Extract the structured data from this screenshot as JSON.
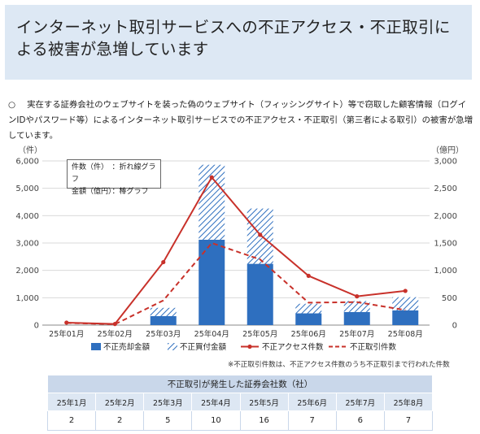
{
  "header": {
    "title": "インターネット取引サービスへの不正アクセス・不正取引による被害が急増しています"
  },
  "description": {
    "bullet": "○",
    "text": "実在する証券会社のウェブサイトを装った偽のウェブサイト（フィッシングサイト）等で窃取した顧客情報（ログインIDやパスワード等）によるインターネット取引サービスでの不正アクセス・不正取引（第三者による取引）の被害が急増しています。"
  },
  "chart_legend_box": {
    "line1": "件数（件）　：折れ線グラフ",
    "line2": "金額（億円）：棒グラフ"
  },
  "footnote": "※不正取引件数は、不正アクセス件数のうち不正取引まで行われた件数",
  "chart_data": {
    "type": "bar",
    "categories": [
      "25年01月",
      "25年02月",
      "25年03月",
      "25年04月",
      "25年05月",
      "25年06月",
      "25年07月",
      "25年08月"
    ],
    "left_axis": {
      "unit_label": "（件）",
      "ticks": [
        "0",
        "1,000",
        "2,000",
        "3,000",
        "4,000",
        "5,000",
        "6,000"
      ],
      "ylim": [
        0,
        6000
      ]
    },
    "right_axis": {
      "unit_label": "（億円）",
      "ticks": [
        "0",
        "500",
        "1,000",
        "1,500",
        "2,000",
        "2,500",
        "3,000"
      ],
      "ylim": [
        0,
        3000
      ]
    },
    "bar_series": [
      {
        "name": "不正売却金額",
        "axis": "right",
        "color": "#2e6fbf",
        "values": [
          0,
          0,
          165,
          1560,
          1120,
          215,
          240,
          270
        ]
      },
      {
        "name": "不正買付金額",
        "axis": "right",
        "color": "#2e6fbf",
        "pattern": "hatch",
        "values": [
          0,
          0,
          150,
          1370,
          1010,
          175,
          200,
          240
        ]
      }
    ],
    "line_series": [
      {
        "name": "不正アクセス件数",
        "axis": "left",
        "color": "#c8312a",
        "dashed": false,
        "values": [
          90,
          40,
          2300,
          5400,
          3300,
          1800,
          1050,
          1250
        ]
      },
      {
        "name": "不正取引件数",
        "axis": "left",
        "color": "#c8312a",
        "dashed": true,
        "values": [
          80,
          30,
          900,
          3000,
          2400,
          820,
          840,
          550
        ]
      }
    ],
    "grid": true,
    "legend_placement": "bottom"
  },
  "company_table": {
    "caption": "不正取引が発生した証券会社数（社）",
    "months": [
      "25年1月",
      "25年2月",
      "25年3月",
      "25年4月",
      "25年5月",
      "25年6月",
      "25年7月",
      "25年8月"
    ],
    "counts": [
      "2",
      "2",
      "5",
      "10",
      "16",
      "7",
      "6",
      "7"
    ]
  }
}
